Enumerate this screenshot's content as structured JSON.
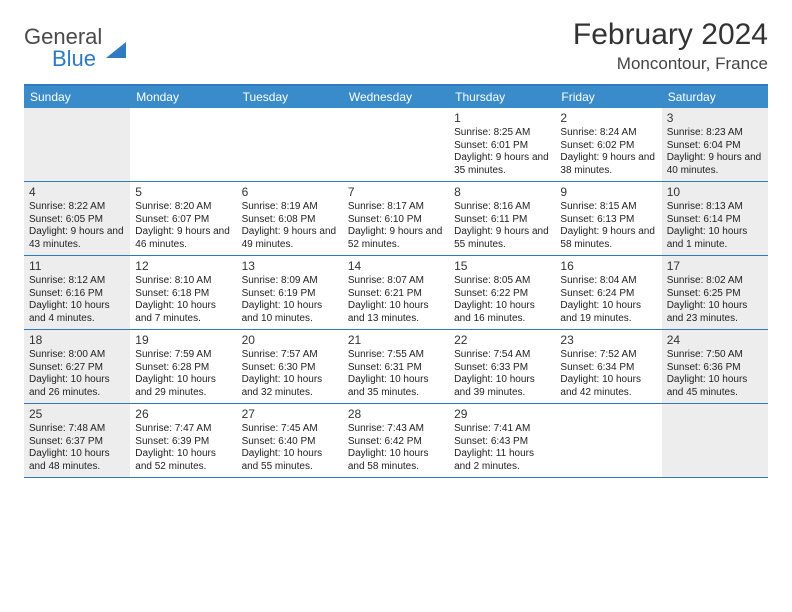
{
  "logo": {
    "word1": "General",
    "word2": "Blue"
  },
  "title": "February 2024",
  "location": "Moncontour, France",
  "header_bg": "#3a8bc9",
  "accent": "#2f7ac0",
  "shaded_bg": "#ededed",
  "days_of_week": [
    "Sunday",
    "Monday",
    "Tuesday",
    "Wednesday",
    "Thursday",
    "Friday",
    "Saturday"
  ],
  "weeks": [
    {
      "cells": [
        {
          "shaded": true
        },
        {
          "shaded": false
        },
        {
          "shaded": false
        },
        {
          "shaded": false
        },
        {
          "shaded": false,
          "day": "1",
          "sunrise": "Sunrise: 8:25 AM",
          "sunset": "Sunset: 6:01 PM",
          "daylight": "Daylight: 9 hours and 35 minutes."
        },
        {
          "shaded": false,
          "day": "2",
          "sunrise": "Sunrise: 8:24 AM",
          "sunset": "Sunset: 6:02 PM",
          "daylight": "Daylight: 9 hours and 38 minutes."
        },
        {
          "shaded": true,
          "day": "3",
          "sunrise": "Sunrise: 8:23 AM",
          "sunset": "Sunset: 6:04 PM",
          "daylight": "Daylight: 9 hours and 40 minutes."
        }
      ]
    },
    {
      "cells": [
        {
          "shaded": true,
          "day": "4",
          "sunrise": "Sunrise: 8:22 AM",
          "sunset": "Sunset: 6:05 PM",
          "daylight": "Daylight: 9 hours and 43 minutes."
        },
        {
          "shaded": false,
          "day": "5",
          "sunrise": "Sunrise: 8:20 AM",
          "sunset": "Sunset: 6:07 PM",
          "daylight": "Daylight: 9 hours and 46 minutes."
        },
        {
          "shaded": false,
          "day": "6",
          "sunrise": "Sunrise: 8:19 AM",
          "sunset": "Sunset: 6:08 PM",
          "daylight": "Daylight: 9 hours and 49 minutes."
        },
        {
          "shaded": false,
          "day": "7",
          "sunrise": "Sunrise: 8:17 AM",
          "sunset": "Sunset: 6:10 PM",
          "daylight": "Daylight: 9 hours and 52 minutes."
        },
        {
          "shaded": false,
          "day": "8",
          "sunrise": "Sunrise: 8:16 AM",
          "sunset": "Sunset: 6:11 PM",
          "daylight": "Daylight: 9 hours and 55 minutes."
        },
        {
          "shaded": false,
          "day": "9",
          "sunrise": "Sunrise: 8:15 AM",
          "sunset": "Sunset: 6:13 PM",
          "daylight": "Daylight: 9 hours and 58 minutes."
        },
        {
          "shaded": true,
          "day": "10",
          "sunrise": "Sunrise: 8:13 AM",
          "sunset": "Sunset: 6:14 PM",
          "daylight": "Daylight: 10 hours and 1 minute."
        }
      ]
    },
    {
      "cells": [
        {
          "shaded": true,
          "day": "11",
          "sunrise": "Sunrise: 8:12 AM",
          "sunset": "Sunset: 6:16 PM",
          "daylight": "Daylight: 10 hours and 4 minutes."
        },
        {
          "shaded": false,
          "day": "12",
          "sunrise": "Sunrise: 8:10 AM",
          "sunset": "Sunset: 6:18 PM",
          "daylight": "Daylight: 10 hours and 7 minutes."
        },
        {
          "shaded": false,
          "day": "13",
          "sunrise": "Sunrise: 8:09 AM",
          "sunset": "Sunset: 6:19 PM",
          "daylight": "Daylight: 10 hours and 10 minutes."
        },
        {
          "shaded": false,
          "day": "14",
          "sunrise": "Sunrise: 8:07 AM",
          "sunset": "Sunset: 6:21 PM",
          "daylight": "Daylight: 10 hours and 13 minutes."
        },
        {
          "shaded": false,
          "day": "15",
          "sunrise": "Sunrise: 8:05 AM",
          "sunset": "Sunset: 6:22 PM",
          "daylight": "Daylight: 10 hours and 16 minutes."
        },
        {
          "shaded": false,
          "day": "16",
          "sunrise": "Sunrise: 8:04 AM",
          "sunset": "Sunset: 6:24 PM",
          "daylight": "Daylight: 10 hours and 19 minutes."
        },
        {
          "shaded": true,
          "day": "17",
          "sunrise": "Sunrise: 8:02 AM",
          "sunset": "Sunset: 6:25 PM",
          "daylight": "Daylight: 10 hours and 23 minutes."
        }
      ]
    },
    {
      "cells": [
        {
          "shaded": true,
          "day": "18",
          "sunrise": "Sunrise: 8:00 AM",
          "sunset": "Sunset: 6:27 PM",
          "daylight": "Daylight: 10 hours and 26 minutes."
        },
        {
          "shaded": false,
          "day": "19",
          "sunrise": "Sunrise: 7:59 AM",
          "sunset": "Sunset: 6:28 PM",
          "daylight": "Daylight: 10 hours and 29 minutes."
        },
        {
          "shaded": false,
          "day": "20",
          "sunrise": "Sunrise: 7:57 AM",
          "sunset": "Sunset: 6:30 PM",
          "daylight": "Daylight: 10 hours and 32 minutes."
        },
        {
          "shaded": false,
          "day": "21",
          "sunrise": "Sunrise: 7:55 AM",
          "sunset": "Sunset: 6:31 PM",
          "daylight": "Daylight: 10 hours and 35 minutes."
        },
        {
          "shaded": false,
          "day": "22",
          "sunrise": "Sunrise: 7:54 AM",
          "sunset": "Sunset: 6:33 PM",
          "daylight": "Daylight: 10 hours and 39 minutes."
        },
        {
          "shaded": false,
          "day": "23",
          "sunrise": "Sunrise: 7:52 AM",
          "sunset": "Sunset: 6:34 PM",
          "daylight": "Daylight: 10 hours and 42 minutes."
        },
        {
          "shaded": true,
          "day": "24",
          "sunrise": "Sunrise: 7:50 AM",
          "sunset": "Sunset: 6:36 PM",
          "daylight": "Daylight: 10 hours and 45 minutes."
        }
      ]
    },
    {
      "cells": [
        {
          "shaded": true,
          "day": "25",
          "sunrise": "Sunrise: 7:48 AM",
          "sunset": "Sunset: 6:37 PM",
          "daylight": "Daylight: 10 hours and 48 minutes."
        },
        {
          "shaded": false,
          "day": "26",
          "sunrise": "Sunrise: 7:47 AM",
          "sunset": "Sunset: 6:39 PM",
          "daylight": "Daylight: 10 hours and 52 minutes."
        },
        {
          "shaded": false,
          "day": "27",
          "sunrise": "Sunrise: 7:45 AM",
          "sunset": "Sunset: 6:40 PM",
          "daylight": "Daylight: 10 hours and 55 minutes."
        },
        {
          "shaded": false,
          "day": "28",
          "sunrise": "Sunrise: 7:43 AM",
          "sunset": "Sunset: 6:42 PM",
          "daylight": "Daylight: 10 hours and 58 minutes."
        },
        {
          "shaded": false,
          "day": "29",
          "sunrise": "Sunrise: 7:41 AM",
          "sunset": "Sunset: 6:43 PM",
          "daylight": "Daylight: 11 hours and 2 minutes."
        },
        {
          "shaded": false
        },
        {
          "shaded": true
        }
      ]
    }
  ]
}
